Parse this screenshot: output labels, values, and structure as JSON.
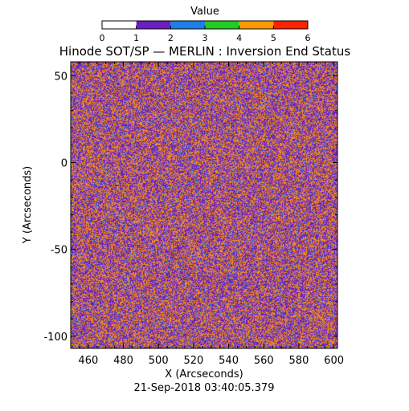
{
  "chart_data": {
    "type": "heatmap",
    "title": "Hinode SOT/SP — MERLIN : Inversion End Status",
    "xlabel": "X (Arcseconds)",
    "ylabel": "Y (Arcseconds)",
    "xlim": [
      450,
      602
    ],
    "ylim": [
      -107,
      58
    ],
    "x_ticks": [
      460,
      480,
      500,
      520,
      540,
      560,
      580,
      600
    ],
    "y_ticks": [
      50,
      0,
      -50,
      -100
    ],
    "timestamp": "21-Sep-2018 03:40:05.379",
    "colorbar": {
      "title": "Value",
      "range": [
        0,
        6
      ],
      "ticks": [
        0,
        1,
        2,
        3,
        4,
        5,
        6
      ],
      "bins": [
        {
          "from": 0,
          "to": 1,
          "color": "#ffffff"
        },
        {
          "from": 1,
          "to": 2,
          "color": "#6a1fbf"
        },
        {
          "from": 2,
          "to": 3,
          "color": "#1e7fe8"
        },
        {
          "from": 3,
          "to": 4,
          "color": "#22cc22"
        },
        {
          "from": 4,
          "to": 5,
          "color": "#ff9900"
        },
        {
          "from": 5,
          "to": 6,
          "color": "#ff2200"
        }
      ]
    },
    "value_fractions": {
      "1": 0.46,
      "2": 0.08,
      "4": 0.46
    },
    "colors": {
      "1": "#6a1fbf",
      "2": "#1e7fe8",
      "4": "#f08a24"
    }
  }
}
